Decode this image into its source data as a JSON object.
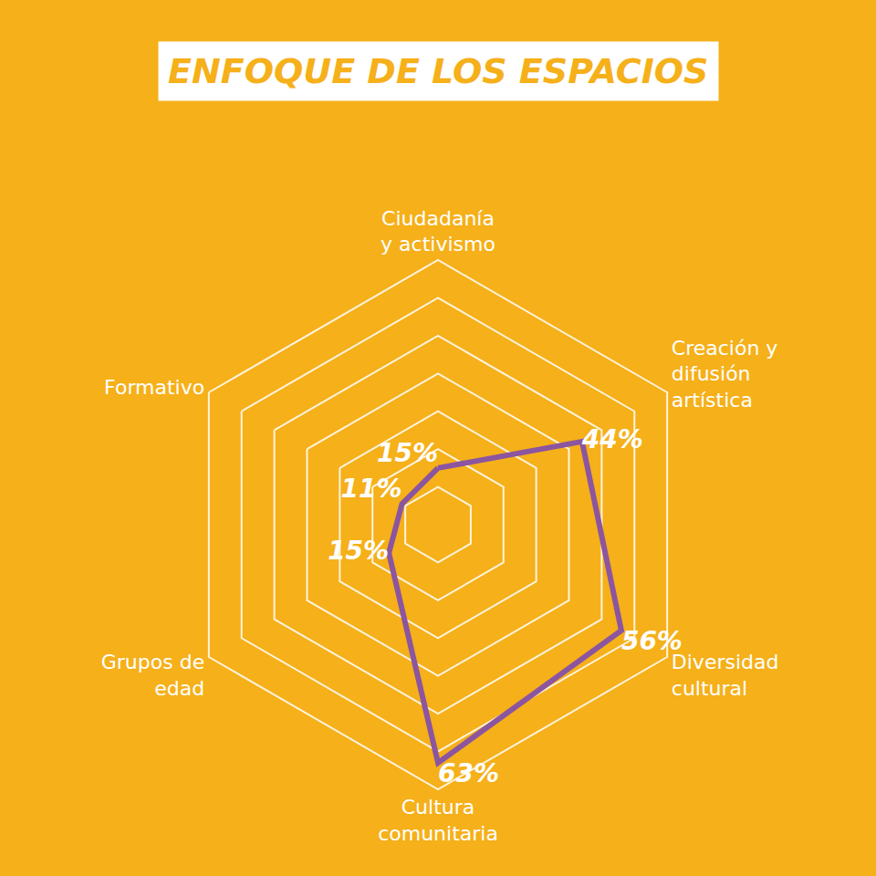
{
  "chart_data": {
    "type": "radar",
    "title": "ENFOQUE DE LOS ESPACIOS",
    "categories": [
      "Ciudadanía y activismo",
      "Creación y difusión artística",
      "Diversidad cultural",
      "Cultura comunitaria",
      "Grupos de edad",
      "Formativo"
    ],
    "values": [
      15,
      44,
      56,
      63,
      15,
      11
    ],
    "value_labels": [
      "15%",
      "44%",
      "56%",
      "63%",
      "15%",
      "11%"
    ],
    "color": "#8b55a0",
    "ylim": [
      0,
      70
    ],
    "yticks": [
      10,
      20,
      30,
      40,
      50,
      60,
      70
    ],
    "grid": true,
    "data_labels": true,
    "tick_labels": "x"
  }
}
